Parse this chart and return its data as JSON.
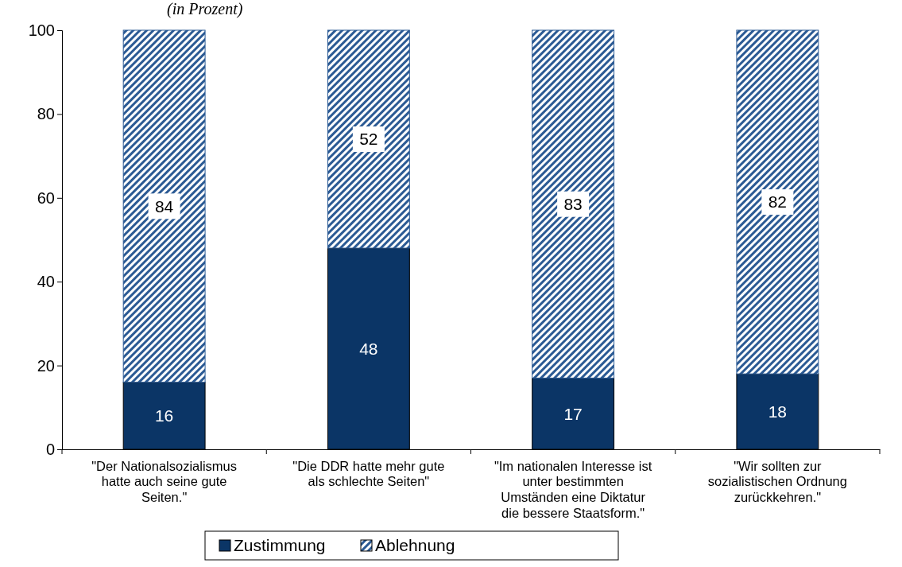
{
  "chart_data": {
    "type": "bar",
    "subtitle": "(in Prozent)",
    "stacked": true,
    "data_labels": true,
    "legend": "bottom",
    "grid": false,
    "categories": [
      "\"Der Nationalsozialismus hatte auch seine gute Seiten.\"",
      "\"Die DDR hatte mehr gute als schlechte Seiten\"",
      "\"Im nationalen Interesse ist unter bestimmten Umständen eine Diktatur die bessere Staatsform.\"",
      "\"Wir sollten zur sozialistischen Ordnung zurückkehren.\""
    ],
    "series": [
      {
        "name": "Zustimmung",
        "color": "#0b3566",
        "values": [
          16,
          48,
          17,
          18
        ]
      },
      {
        "name": "Ablehnung",
        "color": "#2b5a94",
        "values": [
          84,
          52,
          83,
          82
        ]
      }
    ],
    "ylim": [
      0,
      100
    ],
    "yticks": [
      0,
      20,
      40,
      60,
      80,
      100
    ]
  }
}
